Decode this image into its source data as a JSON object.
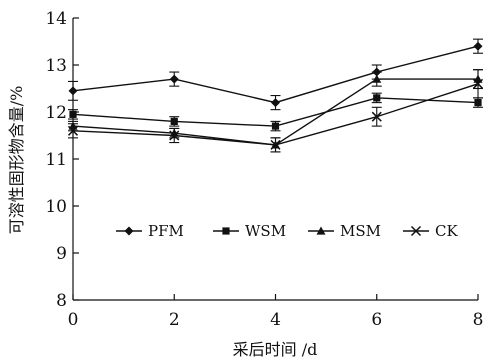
{
  "chart_data": {
    "type": "line",
    "title": "",
    "xlabel": "采后时间 /d",
    "ylabel": "可溶性固形物含量/%",
    "x": [
      0,
      2,
      4,
      6,
      8
    ],
    "xlim": [
      0,
      8
    ],
    "ylim": [
      8,
      14
    ],
    "xticks": [
      0,
      2,
      4,
      6,
      8
    ],
    "yticks": [
      8,
      9,
      10,
      11,
      12,
      13,
      14
    ],
    "grid": false,
    "legend_placement": "center",
    "series": [
      {
        "name": "PFM",
        "marker": "diamond",
        "values": [
          12.45,
          12.7,
          12.2,
          12.85,
          13.4
        ],
        "errors": [
          0.2,
          0.15,
          0.15,
          0.15,
          0.15
        ]
      },
      {
        "name": "WSM",
        "marker": "square",
        "values": [
          11.95,
          11.8,
          11.7,
          12.3,
          12.2
        ],
        "errors": [
          0.1,
          0.1,
          0.1,
          0.1,
          0.1
        ]
      },
      {
        "name": "MSM",
        "marker": "triangle",
        "values": [
          11.7,
          11.55,
          11.3,
          12.7,
          12.7
        ],
        "errors": [
          0.1,
          0.1,
          0.15,
          0.15,
          0.2
        ]
      },
      {
        "name": "CK",
        "marker": "x",
        "values": [
          11.6,
          11.5,
          11.3,
          11.9,
          12.6
        ],
        "errors": [
          0.15,
          0.15,
          0.15,
          0.2,
          0.3
        ]
      }
    ]
  }
}
